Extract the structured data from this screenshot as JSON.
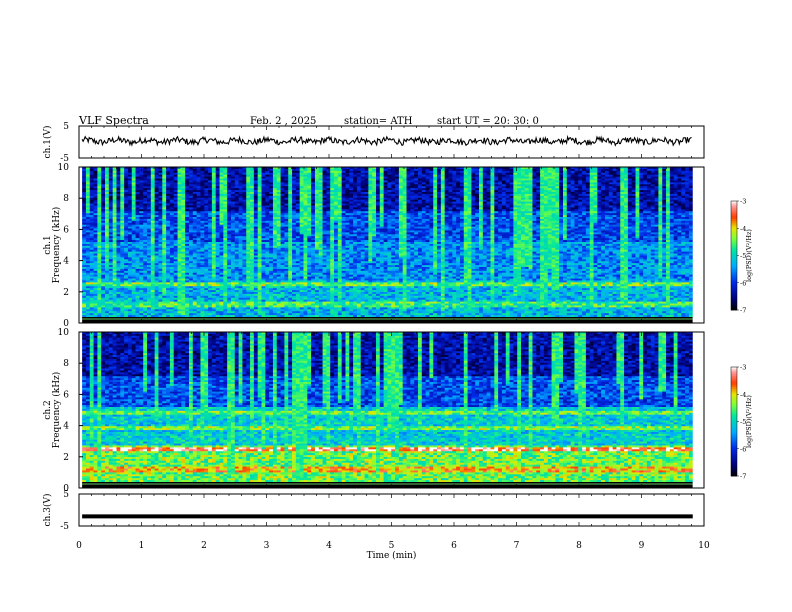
{
  "header": {
    "title": "VLF  Spectra",
    "date": "Feb. 2  , 2025",
    "station": "station= ATH",
    "start_ut": "start  UT  =   20: 30: 0"
  },
  "chart_data": [
    {
      "type": "line",
      "panel": "ch1-voltage",
      "ylabel": "ch.1(V)",
      "ylim": [
        -5,
        5
      ],
      "yticks": [
        "5",
        "-5"
      ],
      "xlim": [
        0,
        10
      ],
      "description_values": {
        "mean": 0.3,
        "noise": 0.7
      }
    },
    {
      "type": "heatmap",
      "panel": "ch1-spectrogram",
      "ylabel": "ch.1\nFrequency  (kHz)",
      "ylabel_line1": "ch.1",
      "ylabel_line2": "Frequency  (kHz)",
      "ylim": [
        0,
        10
      ],
      "yticks": [
        "0",
        "2",
        "4",
        "6",
        "8",
        "10"
      ],
      "xlim": [
        0,
        10
      ],
      "colorbar": {
        "label": "log(PSD)(V²/Hz)",
        "ticks": [
          "-3",
          "-4",
          "-5",
          "-6",
          "-7"
        ],
        "range": [
          -7,
          -3
        ]
      }
    },
    {
      "type": "heatmap",
      "panel": "ch2-spectrogram",
      "ylabel_line1": "ch.2",
      "ylabel_line2": "Frequency  (kHz)",
      "ylim": [
        0,
        10
      ],
      "yticks": [
        "0",
        "2",
        "4",
        "6",
        "8",
        "10"
      ],
      "xlim": [
        0,
        10
      ],
      "colorbar": {
        "label": "log(PSD)(V²/Hz)",
        "ticks": [
          "-3",
          "-4",
          "-5",
          "-6",
          "-7"
        ],
        "range": [
          -7,
          -3
        ]
      }
    },
    {
      "type": "line",
      "panel": "ch3-voltage",
      "ylabel": "ch.3(V)",
      "ylim": [
        -5,
        5
      ],
      "yticks": [
        "5",
        "-5"
      ],
      "xlim": [
        0,
        10
      ],
      "description_values": {
        "constant": -2
      },
      "xlabel": "Time  (min)",
      "xticks": [
        "0",
        "1",
        "2",
        "3",
        "4",
        "5",
        "6",
        "7",
        "8",
        "9",
        "10"
      ]
    }
  ]
}
